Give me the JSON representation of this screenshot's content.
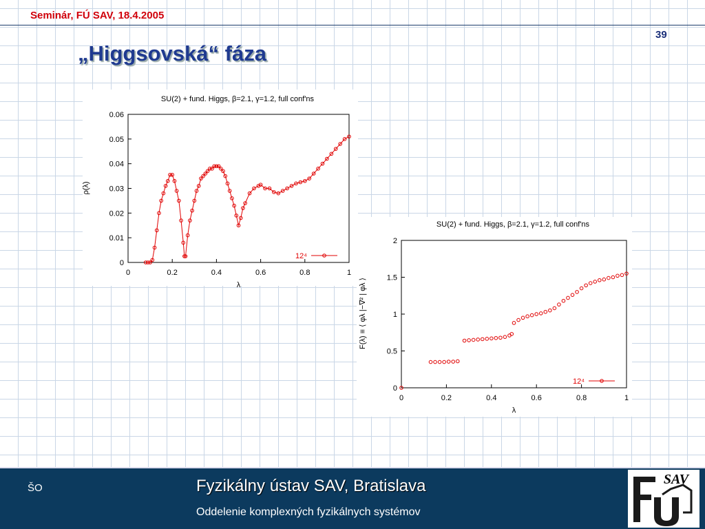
{
  "header": "Seminár, FÚ SAV, 18.4.2005",
  "page_number": "39",
  "title": "„Higgsovská“ fáza",
  "footer": {
    "left": "ŠO",
    "title": "Fyzikálny ústav SAV, Bratislava",
    "subtitle": "Oddelenie komplexných fyzikálnych systémov",
    "logo": "SAV"
  },
  "chart_data": [
    {
      "type": "line",
      "line": true,
      "title": "SU(2) + fund. Higgs, β=2.1, γ=1.2, full conf'ns",
      "x_label": "λ",
      "y_label": "ρ(λ)",
      "x": [
        0.08,
        0.09,
        0.1,
        0.11,
        0.12,
        0.13,
        0.14,
        0.15,
        0.16,
        0.17,
        0.18,
        0.19,
        0.2,
        0.21,
        0.22,
        0.23,
        0.24,
        0.25,
        0.255,
        0.26,
        0.27,
        0.28,
        0.29,
        0.3,
        0.31,
        0.32,
        0.33,
        0.34,
        0.35,
        0.36,
        0.37,
        0.38,
        0.39,
        0.4,
        0.41,
        0.42,
        0.43,
        0.44,
        0.45,
        0.46,
        0.47,
        0.48,
        0.49,
        0.5,
        0.51,
        0.52,
        0.53,
        0.55,
        0.57,
        0.59,
        0.6,
        0.62,
        0.64,
        0.66,
        0.68,
        0.7,
        0.72,
        0.74,
        0.76,
        0.78,
        0.8,
        0.82,
        0.84,
        0.86,
        0.88,
        0.9,
        0.92,
        0.94,
        0.96,
        0.98,
        1.0
      ],
      "series": [
        {
          "name": "12⁴",
          "color": "#e00000",
          "values": [
            0,
            0,
            0,
            0.001,
            0.006,
            0.013,
            0.02,
            0.025,
            0.028,
            0.031,
            0.033,
            0.0355,
            0.0355,
            0.033,
            0.029,
            0.025,
            0.017,
            0.008,
            0.0025,
            0.0025,
            0.011,
            0.017,
            0.021,
            0.025,
            0.029,
            0.031,
            0.034,
            0.035,
            0.036,
            0.037,
            0.038,
            0.038,
            0.039,
            0.039,
            0.039,
            0.038,
            0.037,
            0.035,
            0.032,
            0.029,
            0.026,
            0.023,
            0.019,
            0.015,
            0.018,
            0.022,
            0.024,
            0.028,
            0.03,
            0.031,
            0.0315,
            0.03,
            0.03,
            0.0285,
            0.028,
            0.029,
            0.03,
            0.031,
            0.032,
            0.0325,
            0.033,
            0.034,
            0.036,
            0.038,
            0.04,
            0.042,
            0.044,
            0.046,
            0.048,
            0.05,
            0.051
          ]
        }
      ],
      "xlim": [
        0,
        1
      ],
      "xticks": [
        0,
        0.2,
        0.4,
        0.6,
        0.8,
        1
      ],
      "ylim": [
        0,
        0.06
      ],
      "yticks": [
        0,
        0.01,
        0.02,
        0.03,
        0.04,
        0.05,
        0.06
      ],
      "legend": "lower right"
    },
    {
      "type": "scatter",
      "line": false,
      "title": "SU(2) + fund. Higgs, β=2.1, γ=1.2, full conf'ns",
      "x_label": "λ",
      "y_label": "F(λ) ≡ ⟨ φλ |−∇² | φλ ⟩",
      "x": [
        0,
        0.13,
        0.15,
        0.17,
        0.19,
        0.21,
        0.23,
        0.25,
        0.28,
        0.3,
        0.32,
        0.34,
        0.36,
        0.38,
        0.4,
        0.42,
        0.44,
        0.46,
        0.48,
        0.49,
        0.5,
        0.52,
        0.54,
        0.56,
        0.58,
        0.6,
        0.62,
        0.64,
        0.66,
        0.68,
        0.7,
        0.72,
        0.74,
        0.76,
        0.78,
        0.8,
        0.82,
        0.84,
        0.86,
        0.88,
        0.9,
        0.92,
        0.94,
        0.96,
        0.98,
        1.0
      ],
      "series": [
        {
          "name": "12⁴",
          "color": "#e00000",
          "values": [
            0,
            0.35,
            0.35,
            0.35,
            0.35,
            0.355,
            0.355,
            0.36,
            0.64,
            0.645,
            0.65,
            0.655,
            0.66,
            0.665,
            0.67,
            0.675,
            0.68,
            0.69,
            0.71,
            0.73,
            0.88,
            0.92,
            0.95,
            0.97,
            0.985,
            1.0,
            1.01,
            1.03,
            1.05,
            1.08,
            1.13,
            1.18,
            1.22,
            1.26,
            1.3,
            1.35,
            1.39,
            1.42,
            1.44,
            1.46,
            1.47,
            1.49,
            1.5,
            1.52,
            1.53,
            1.55
          ]
        }
      ],
      "xlim": [
        0,
        1
      ],
      "xticks": [
        0,
        0.2,
        0.4,
        0.6,
        0.8,
        1
      ],
      "ylim": [
        0,
        2
      ],
      "yticks": [
        0,
        0.5,
        1,
        1.5,
        2
      ],
      "legend": "lower right"
    }
  ]
}
